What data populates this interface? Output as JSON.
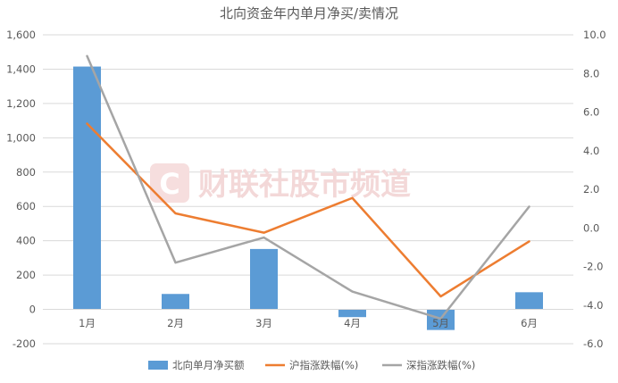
{
  "chart_data": {
    "type": "bar+line",
    "title": "北向资金年内单月净买/卖情况",
    "categories": [
      "1月",
      "2月",
      "3月",
      "4月",
      "5月",
      "6月"
    ],
    "series": [
      {
        "name": "北向单月净买额",
        "type": "bar",
        "axis": "left",
        "color": "#5b9bd5",
        "values": [
          1415,
          90,
          352,
          -45,
          -120,
          100
        ]
      },
      {
        "name": "沪指涨跌幅(%)",
        "type": "line",
        "axis": "right",
        "color": "#ed7d31",
        "values": [
          5.4,
          0.75,
          -0.25,
          1.55,
          -3.55,
          -0.7
        ]
      },
      {
        "name": "深指涨跌幅(%)",
        "type": "line",
        "axis": "right",
        "color": "#a5a5a5",
        "values": [
          8.9,
          -1.8,
          -0.5,
          -3.3,
          -4.7,
          1.1
        ]
      }
    ],
    "y_left": {
      "min": -200,
      "max": 1600,
      "step": 200,
      "ticks": [
        "-200",
        "0",
        "200",
        "400",
        "600",
        "800",
        "1,000",
        "1,200",
        "1,400",
        "1,600"
      ]
    },
    "y_right": {
      "min": -6,
      "max": 10,
      "step": 2,
      "ticks": [
        "-6.0",
        "-4.0",
        "-2.0",
        "0.0",
        "2.0",
        "4.0",
        "6.0",
        "8.0",
        "10.0"
      ]
    },
    "grid": true,
    "legend_position": "bottom",
    "watermark": "财联社股市频道"
  }
}
